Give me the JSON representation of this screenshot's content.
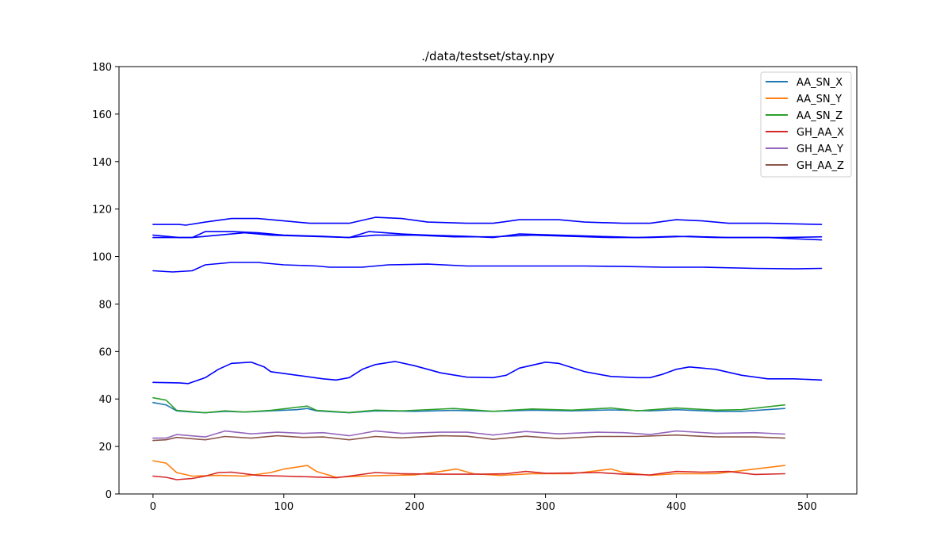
{
  "chart_data": {
    "type": "line",
    "title": "./data/testset/stay.npy",
    "xlabel": "",
    "ylabel": "",
    "xlim": [
      -26,
      538
    ],
    "ylim": [
      0,
      180
    ],
    "xticks": [
      0,
      100,
      200,
      300,
      400,
      500
    ],
    "yticks": [
      0,
      20,
      40,
      60,
      80,
      100,
      120,
      140,
      160,
      180
    ],
    "grid": false,
    "legend_position": "top-right",
    "series": [
      {
        "name": "AA_SN_X",
        "color": "#1f77b4",
        "points": [
          [
            0,
            38.5
          ],
          [
            10,
            37.5
          ],
          [
            18,
            35
          ],
          [
            30,
            34.5
          ],
          [
            40,
            34.2
          ],
          [
            55,
            34.8
          ],
          [
            70,
            34.5
          ],
          [
            90,
            35
          ],
          [
            110,
            35.5
          ],
          [
            118,
            36
          ],
          [
            125,
            35
          ],
          [
            150,
            34.2
          ],
          [
            170,
            35
          ],
          [
            200,
            34.8
          ],
          [
            230,
            35.2
          ],
          [
            260,
            34.8
          ],
          [
            290,
            35.3
          ],
          [
            320,
            35
          ],
          [
            350,
            35.4
          ],
          [
            380,
            35
          ],
          [
            400,
            35.5
          ],
          [
            430,
            34.8
          ],
          [
            450,
            34.8
          ],
          [
            483,
            36
          ]
        ]
      },
      {
        "name": "AA_SN_Y",
        "color": "#ff7f0e",
        "points": [
          [
            0,
            14
          ],
          [
            10,
            13
          ],
          [
            18,
            9
          ],
          [
            30,
            7.5
          ],
          [
            50,
            7.8
          ],
          [
            70,
            7.5
          ],
          [
            90,
            9
          ],
          [
            100,
            10.5
          ],
          [
            118,
            12
          ],
          [
            125,
            9.5
          ],
          [
            140,
            7
          ],
          [
            160,
            7.5
          ],
          [
            180,
            7.8
          ],
          [
            200,
            8
          ],
          [
            220,
            9.5
          ],
          [
            232,
            10.5
          ],
          [
            245,
            8.5
          ],
          [
            265,
            7.8
          ],
          [
            290,
            8.5
          ],
          [
            320,
            8.5
          ],
          [
            350,
            10.5
          ],
          [
            360,
            9
          ],
          [
            380,
            7.8
          ],
          [
            400,
            8.5
          ],
          [
            430,
            8.5
          ],
          [
            460,
            10.5
          ],
          [
            483,
            12
          ]
        ]
      },
      {
        "name": "AA_SN_Z",
        "color": "#2ca02c",
        "points": [
          [
            0,
            40.5
          ],
          [
            10,
            39.5
          ],
          [
            18,
            35.2
          ],
          [
            40,
            34.2
          ],
          [
            55,
            35
          ],
          [
            70,
            34.5
          ],
          [
            90,
            35.2
          ],
          [
            110,
            36.5
          ],
          [
            118,
            37
          ],
          [
            125,
            35.2
          ],
          [
            150,
            34.3
          ],
          [
            170,
            35.3
          ],
          [
            190,
            35
          ],
          [
            230,
            36
          ],
          [
            260,
            34.8
          ],
          [
            290,
            35.8
          ],
          [
            320,
            35.3
          ],
          [
            350,
            36.2
          ],
          [
            370,
            35
          ],
          [
            400,
            36.2
          ],
          [
            430,
            35.3
          ],
          [
            450,
            35.5
          ],
          [
            483,
            37.5
          ]
        ]
      },
      {
        "name": "GH_AA_X",
        "color": "#d62728",
        "points": [
          [
            0,
            7.5
          ],
          [
            10,
            7
          ],
          [
            18,
            6
          ],
          [
            30,
            6.5
          ],
          [
            40,
            7.5
          ],
          [
            50,
            9
          ],
          [
            60,
            9.2
          ],
          [
            80,
            7.8
          ],
          [
            100,
            7.5
          ],
          [
            120,
            7.2
          ],
          [
            140,
            6.8
          ],
          [
            150,
            7.5
          ],
          [
            170,
            9
          ],
          [
            190,
            8.5
          ],
          [
            220,
            8.3
          ],
          [
            250,
            8.3
          ],
          [
            270,
            8.5
          ],
          [
            285,
            9.5
          ],
          [
            300,
            8.7
          ],
          [
            320,
            8.8
          ],
          [
            340,
            9
          ],
          [
            360,
            8.3
          ],
          [
            380,
            8
          ],
          [
            400,
            9.5
          ],
          [
            420,
            9.2
          ],
          [
            440,
            9.5
          ],
          [
            460,
            8.2
          ],
          [
            483,
            8.5
          ]
        ]
      },
      {
        "name": "GH_AA_Y",
        "color": "#9467bd",
        "points": [
          [
            0,
            23.5
          ],
          [
            10,
            23.5
          ],
          [
            18,
            25
          ],
          [
            40,
            24
          ],
          [
            55,
            26.5
          ],
          [
            75,
            25.3
          ],
          [
            95,
            26
          ],
          [
            115,
            25.5
          ],
          [
            130,
            25.8
          ],
          [
            150,
            24.5
          ],
          [
            170,
            26.5
          ],
          [
            190,
            25.5
          ],
          [
            220,
            26
          ],
          [
            240,
            26
          ],
          [
            260,
            24.8
          ],
          [
            285,
            26.3
          ],
          [
            310,
            25.3
          ],
          [
            340,
            26
          ],
          [
            360,
            25.8
          ],
          [
            380,
            25
          ],
          [
            400,
            26.5
          ],
          [
            430,
            25.5
          ],
          [
            460,
            25.8
          ],
          [
            483,
            25.2
          ]
        ]
      },
      {
        "name": "GH_AA_Z",
        "color": "#8c564b",
        "points": [
          [
            0,
            22.5
          ],
          [
            10,
            22.8
          ],
          [
            18,
            23.8
          ],
          [
            40,
            22.8
          ],
          [
            55,
            24.2
          ],
          [
            75,
            23.5
          ],
          [
            95,
            24.5
          ],
          [
            115,
            23.8
          ],
          [
            130,
            24
          ],
          [
            150,
            22.8
          ],
          [
            170,
            24.2
          ],
          [
            190,
            23.6
          ],
          [
            220,
            24.5
          ],
          [
            240,
            24.3
          ],
          [
            260,
            23
          ],
          [
            285,
            24.3
          ],
          [
            310,
            23.3
          ],
          [
            340,
            24.2
          ],
          [
            370,
            24.2
          ],
          [
            400,
            24.8
          ],
          [
            430,
            24
          ],
          [
            460,
            24
          ],
          [
            483,
            23.5
          ]
        ]
      },
      {
        "name": "",
        "color": "#0000ff",
        "points": [
          [
            0,
            113.5
          ],
          [
            20,
            113.5
          ],
          [
            25,
            113.2
          ],
          [
            40,
            114.5
          ],
          [
            60,
            116
          ],
          [
            80,
            116
          ],
          [
            100,
            115
          ],
          [
            120,
            114
          ],
          [
            135,
            114
          ],
          [
            150,
            114
          ],
          [
            170,
            116.5
          ],
          [
            190,
            116
          ],
          [
            210,
            114.5
          ],
          [
            240,
            114
          ],
          [
            260,
            114
          ],
          [
            280,
            115.5
          ],
          [
            310,
            115.5
          ],
          [
            330,
            114.5
          ],
          [
            360,
            114
          ],
          [
            380,
            114
          ],
          [
            400,
            115.5
          ],
          [
            420,
            115
          ],
          [
            440,
            114
          ],
          [
            470,
            114
          ],
          [
            511,
            113.5
          ]
        ]
      },
      {
        "name": "",
        "color": "#0000ff",
        "points": [
          [
            0,
            109
          ],
          [
            20,
            108
          ],
          [
            30,
            108
          ],
          [
            40,
            110.5
          ],
          [
            60,
            110.5
          ],
          [
            80,
            110
          ],
          [
            100,
            109
          ],
          [
            130,
            108.5
          ],
          [
            150,
            108
          ],
          [
            165,
            110.5
          ],
          [
            190,
            109.5
          ],
          [
            210,
            109
          ],
          [
            240,
            108.5
          ],
          [
            260,
            108
          ],
          [
            280,
            109.5
          ],
          [
            310,
            109
          ],
          [
            340,
            108.5
          ],
          [
            370,
            108
          ],
          [
            400,
            108.5
          ],
          [
            430,
            108
          ],
          [
            470,
            108
          ],
          [
            511,
            107
          ]
        ]
      },
      {
        "name": "",
        "color": "#0000ff",
        "points": [
          [
            0,
            108
          ],
          [
            30,
            108
          ],
          [
            50,
            109
          ],
          [
            70,
            110
          ],
          [
            90,
            109
          ],
          [
            120,
            108.5
          ],
          [
            150,
            108
          ],
          [
            170,
            109
          ],
          [
            200,
            109
          ],
          [
            230,
            108.3
          ],
          [
            260,
            108.3
          ],
          [
            290,
            109
          ],
          [
            320,
            108.5
          ],
          [
            350,
            108
          ],
          [
            380,
            108
          ],
          [
            410,
            108.5
          ],
          [
            440,
            108
          ],
          [
            480,
            108
          ],
          [
            511,
            108.3
          ]
        ]
      },
      {
        "name": "",
        "color": "#0000ff",
        "points": [
          [
            0,
            94
          ],
          [
            15,
            93.5
          ],
          [
            30,
            94
          ],
          [
            40,
            96.5
          ],
          [
            60,
            97.5
          ],
          [
            80,
            97.5
          ],
          [
            100,
            96.5
          ],
          [
            125,
            96
          ],
          [
            135,
            95.5
          ],
          [
            160,
            95.5
          ],
          [
            180,
            96.5
          ],
          [
            210,
            96.8
          ],
          [
            240,
            96
          ],
          [
            270,
            96
          ],
          [
            300,
            96
          ],
          [
            330,
            96
          ],
          [
            360,
            95.8
          ],
          [
            390,
            95.5
          ],
          [
            420,
            95.5
          ],
          [
            460,
            95
          ],
          [
            490,
            94.8
          ],
          [
            511,
            95
          ]
        ]
      },
      {
        "name": "",
        "color": "#0000ff",
        "points": [
          [
            0,
            47
          ],
          [
            20,
            46.8
          ],
          [
            27,
            46.5
          ],
          [
            40,
            49
          ],
          [
            50,
            52.5
          ],
          [
            60,
            55
          ],
          [
            75,
            55.5
          ],
          [
            85,
            53.5
          ],
          [
            90,
            51.5
          ],
          [
            110,
            50
          ],
          [
            130,
            48.5
          ],
          [
            140,
            48
          ],
          [
            150,
            49
          ],
          [
            160,
            52.5
          ],
          [
            170,
            54.5
          ],
          [
            185,
            55.8
          ],
          [
            200,
            54
          ],
          [
            220,
            51
          ],
          [
            240,
            49.2
          ],
          [
            260,
            49
          ],
          [
            270,
            50
          ],
          [
            280,
            53
          ],
          [
            300,
            55.5
          ],
          [
            310,
            55
          ],
          [
            330,
            51.5
          ],
          [
            350,
            49.5
          ],
          [
            370,
            49
          ],
          [
            380,
            49
          ],
          [
            390,
            50.5
          ],
          [
            400,
            52.5
          ],
          [
            410,
            53.5
          ],
          [
            430,
            52.5
          ],
          [
            450,
            50
          ],
          [
            470,
            48.5
          ],
          [
            490,
            48.5
          ],
          [
            511,
            48
          ]
        ]
      }
    ]
  }
}
